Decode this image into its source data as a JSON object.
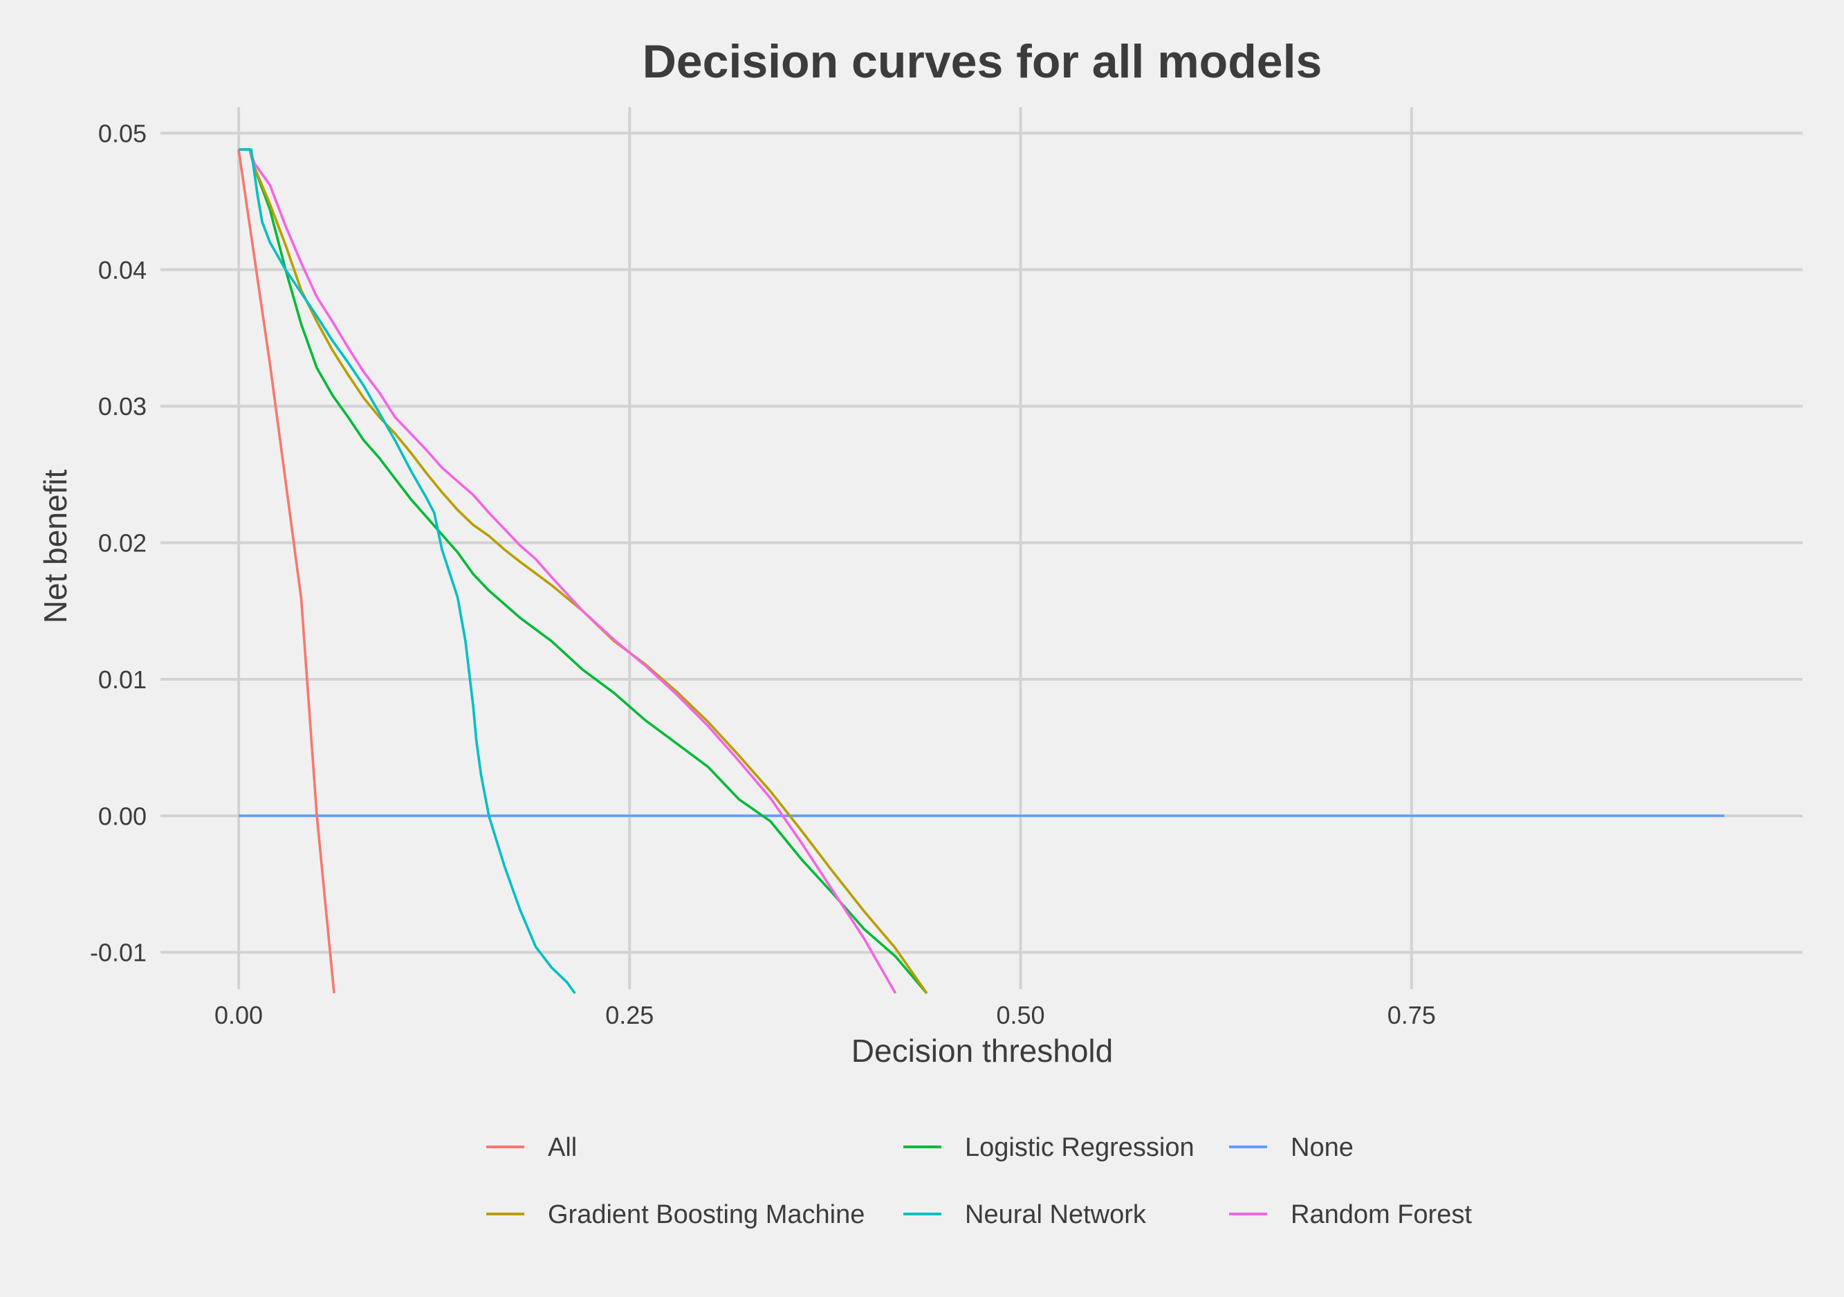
{
  "chart_data": {
    "type": "line",
    "title": "Decision curves for all models",
    "xlabel": "Decision threshold",
    "ylabel": "Net benefit",
    "xlim": [
      -0.05,
      1.0
    ],
    "ylim": [
      -0.0127,
      0.0519
    ],
    "x_ticks": [
      0.0,
      0.25,
      0.5,
      0.75
    ],
    "x_tick_labels": [
      "0.00",
      "0.25",
      "0.50",
      "0.75"
    ],
    "y_ticks": [
      -0.01,
      0.0,
      0.01,
      0.02,
      0.03,
      0.04,
      0.05
    ],
    "y_tick_labels": [
      "-0.01",
      "0.00",
      "0.01",
      "0.02",
      "0.03",
      "0.04",
      "0.05"
    ],
    "grid": true,
    "legend_position": "bottom",
    "series": [
      {
        "name": "All",
        "color": "#F8766D",
        "x": [
          0.0,
          0.02,
          0.04,
          0.05,
          0.061
        ],
        "y": [
          0.0488,
          0.0331,
          0.0159,
          0.0,
          -0.013
        ]
      },
      {
        "name": "Gradient Boosting Machine",
        "color": "#B79F00",
        "x": [
          0.0,
          0.007,
          0.01,
          0.02,
          0.03,
          0.04,
          0.05,
          0.06,
          0.07,
          0.08,
          0.09,
          0.1,
          0.11,
          0.12,
          0.13,
          0.14,
          0.15,
          0.16,
          0.17,
          0.18,
          0.2,
          0.22,
          0.24,
          0.26,
          0.28,
          0.3,
          0.32,
          0.34,
          0.36,
          0.38,
          0.4,
          0.42,
          0.44
        ],
        "y": [
          0.0488,
          0.0488,
          0.0475,
          0.0448,
          0.0418,
          0.0385,
          0.0362,
          0.0341,
          0.0323,
          0.0306,
          0.0292,
          0.028,
          0.0266,
          0.0251,
          0.0237,
          0.0224,
          0.0213,
          0.0205,
          0.0195,
          0.0186,
          0.0169,
          0.015,
          0.0128,
          0.0111,
          0.0091,
          0.0069,
          0.0044,
          0.0018,
          -0.0011,
          -0.0041,
          -0.007,
          -0.0097,
          -0.013
        ]
      },
      {
        "name": "Logistic Regression",
        "color": "#00BA38",
        "x": [
          0.0,
          0.007,
          0.01,
          0.02,
          0.03,
          0.04,
          0.05,
          0.06,
          0.07,
          0.08,
          0.09,
          0.1,
          0.11,
          0.12,
          0.13,
          0.14,
          0.15,
          0.16,
          0.17,
          0.18,
          0.2,
          0.22,
          0.24,
          0.26,
          0.28,
          0.3,
          0.32,
          0.34,
          0.36,
          0.38,
          0.4,
          0.42,
          0.44
        ],
        "y": [
          0.0488,
          0.0488,
          0.0475,
          0.0444,
          0.04,
          0.036,
          0.0328,
          0.0308,
          0.0292,
          0.0275,
          0.0262,
          0.0247,
          0.0232,
          0.0219,
          0.0206,
          0.0193,
          0.0177,
          0.0165,
          0.0155,
          0.0145,
          0.0128,
          0.0107,
          0.009,
          0.007,
          0.0053,
          0.0036,
          0.0012,
          -0.0004,
          -0.0032,
          -0.0057,
          -0.0083,
          -0.0103,
          -0.013
        ]
      },
      {
        "name": "None",
        "color": "#619CFF",
        "x": [
          0.0,
          0.95
        ],
        "y": [
          0.0,
          0.0
        ]
      },
      {
        "name": "Neural Network",
        "color": "#00BFC4",
        "x": [
          0.0,
          0.008,
          0.012,
          0.015,
          0.02,
          0.03,
          0.04,
          0.05,
          0.06,
          0.07,
          0.08,
          0.09,
          0.1,
          0.11,
          0.12,
          0.125,
          0.13,
          0.14,
          0.145,
          0.15,
          0.152,
          0.155,
          0.16,
          0.17,
          0.18,
          0.19,
          0.2,
          0.21,
          0.215
        ],
        "y": [
          0.0488,
          0.0488,
          0.0455,
          0.0435,
          0.042,
          0.04,
          0.0383,
          0.0366,
          0.0348,
          0.0332,
          0.0315,
          0.0295,
          0.0275,
          0.0253,
          0.0233,
          0.0222,
          0.0195,
          0.016,
          0.0128,
          0.008,
          0.0055,
          0.003,
          0.0,
          -0.0037,
          -0.0069,
          -0.0096,
          -0.0111,
          -0.0122,
          -0.013
        ]
      },
      {
        "name": "Random Forest",
        "color": "#F564E3",
        "x": [
          0.0,
          0.007,
          0.01,
          0.02,
          0.03,
          0.04,
          0.05,
          0.06,
          0.07,
          0.08,
          0.09,
          0.1,
          0.11,
          0.12,
          0.13,
          0.14,
          0.15,
          0.16,
          0.17,
          0.18,
          0.19,
          0.2,
          0.22,
          0.24,
          0.26,
          0.28,
          0.3,
          0.32,
          0.34,
          0.36,
          0.38,
          0.4,
          0.42
        ],
        "y": [
          0.0488,
          0.0488,
          0.0478,
          0.0462,
          0.0432,
          0.0405,
          0.038,
          0.0362,
          0.0343,
          0.0325,
          0.031,
          0.0292,
          0.028,
          0.0268,
          0.0255,
          0.0245,
          0.0235,
          0.0222,
          0.021,
          0.0198,
          0.0188,
          0.0175,
          0.015,
          0.0129,
          0.011,
          0.0089,
          0.0066,
          0.004,
          0.0013,
          -0.002,
          -0.0055,
          -0.009,
          -0.013
        ]
      }
    ],
    "legend_layout": [
      "All",
      "Logistic Regression",
      "None",
      "Gradient Boosting Machine",
      "Neural Network",
      "Random Forest"
    ]
  }
}
